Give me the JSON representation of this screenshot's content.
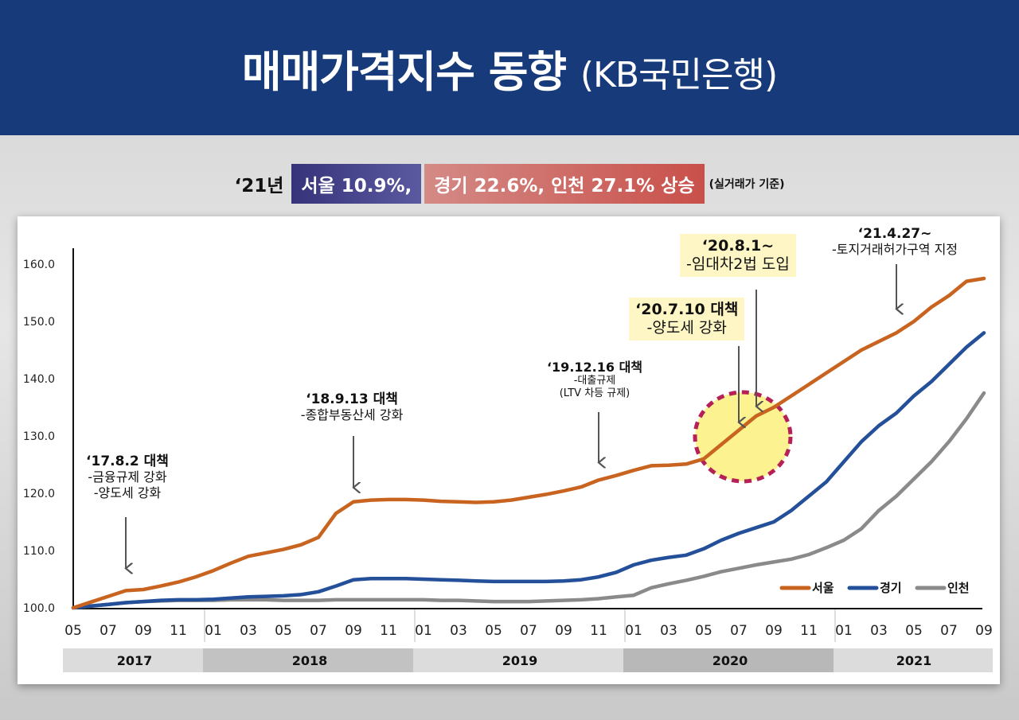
{
  "header": {
    "title": "매매가격지수 동향",
    "source": "(KB국민은행)"
  },
  "subtitle": {
    "year": "‘21년",
    "seoul": "서울 10.9%,",
    "others": "경기 22.6%, 인천 27.1% 상승",
    "note": "(실거래가 기준)"
  },
  "annotations": {
    "a1": {
      "title": "‘17.8.2 대책",
      "lines": [
        "-금융규제 강화",
        "-양도세 강화"
      ]
    },
    "a2": {
      "title": "‘18.9.13 대책",
      "lines": [
        "-종합부동산세 강화"
      ]
    },
    "a3": {
      "title": "‘19.12.16 대책",
      "lines": [
        "-대출규제",
        "(LTV 차등 규제)"
      ]
    },
    "a4": {
      "title": "‘20.7.10 대책",
      "lines": [
        "-양도세 강화"
      ]
    },
    "a5": {
      "title": "‘20.8.1~",
      "lines": [
        "-임대차2법 도입"
      ]
    },
    "a6": {
      "title": "‘21.4.27~",
      "lines": [
        "-토지거래허가구역 지정"
      ]
    }
  },
  "colors": {
    "seoul": "#c8641f",
    "gyeonggi": "#24509a",
    "incheon": "#8a8a8a",
    "highlight": "#fcf28a",
    "highlight_border": "#b0154f"
  },
  "chart_data": {
    "type": "line",
    "ylim": [
      100,
      160
    ],
    "yticks": [
      "100.0",
      "110.0",
      "120.0",
      "130.0",
      "140.0",
      "150.0",
      "160.0"
    ],
    "x_tick_labels": [
      "05",
      "07",
      "09",
      "11",
      "01",
      "03",
      "05",
      "07",
      "09",
      "11",
      "01",
      "03",
      "05",
      "07",
      "09",
      "11",
      "01",
      "03",
      "05",
      "07",
      "09",
      "11",
      "01",
      "03",
      "05",
      "07",
      "09"
    ],
    "year_groups": [
      {
        "label": "2017",
        "start": "2017-05",
        "end": "2017-12"
      },
      {
        "label": "2018",
        "start": "2018-01",
        "end": "2018-12"
      },
      {
        "label": "2019",
        "start": "2019-01",
        "end": "2019-12"
      },
      {
        "label": "2020",
        "start": "2020-01",
        "end": "2020-12"
      },
      {
        "label": "2021",
        "start": "2021-01",
        "end": "2021-09"
      }
    ],
    "x": [
      "2017-05",
      "2017-06",
      "2017-07",
      "2017-08",
      "2017-09",
      "2017-10",
      "2017-11",
      "2017-12",
      "2018-01",
      "2018-02",
      "2018-03",
      "2018-04",
      "2018-05",
      "2018-06",
      "2018-07",
      "2018-08",
      "2018-09",
      "2018-10",
      "2018-11",
      "2018-12",
      "2019-01",
      "2019-02",
      "2019-03",
      "2019-04",
      "2019-05",
      "2019-06",
      "2019-07",
      "2019-08",
      "2019-09",
      "2019-10",
      "2019-11",
      "2019-12",
      "2020-01",
      "2020-02",
      "2020-03",
      "2020-04",
      "2020-05",
      "2020-06",
      "2020-07",
      "2020-08",
      "2020-09",
      "2020-10",
      "2020-11",
      "2020-12",
      "2021-01",
      "2021-02",
      "2021-03",
      "2021-04",
      "2021-05",
      "2021-06",
      "2021-07",
      "2021-08",
      "2021-09"
    ],
    "series": [
      {
        "name": "서울",
        "values": [
          100.0,
          101.0,
          102.0,
          103.0,
          103.2,
          103.8,
          104.5,
          105.4,
          106.5,
          107.8,
          109.0,
          109.6,
          110.2,
          111.0,
          112.3,
          116.5,
          118.5,
          118.8,
          118.9,
          118.9,
          118.8,
          118.6,
          118.5,
          118.4,
          118.5,
          118.8,
          119.3,
          119.8,
          120.4,
          121.1,
          122.3,
          123.1,
          124.0,
          124.8,
          124.9,
          125.1,
          126.0,
          128.5,
          131.0,
          133.5,
          135.0,
          137.0,
          139.0,
          141.0,
          143.0,
          145.0,
          146.5,
          148.0,
          150.0,
          152.5,
          154.5,
          157.0,
          157.5
        ]
      },
      {
        "name": "경기",
        "values": [
          100.0,
          100.3,
          100.6,
          100.9,
          101.1,
          101.3,
          101.4,
          101.4,
          101.5,
          101.7,
          101.9,
          102.0,
          102.1,
          102.3,
          102.8,
          103.8,
          104.9,
          105.1,
          105.1,
          105.1,
          105.0,
          104.9,
          104.8,
          104.7,
          104.6,
          104.6,
          104.6,
          104.6,
          104.7,
          104.9,
          105.4,
          106.2,
          107.5,
          108.3,
          108.8,
          109.2,
          110.3,
          111.8,
          113.0,
          114.0,
          115.0,
          117.0,
          119.5,
          122.0,
          125.5,
          129.0,
          131.8,
          134.0,
          137.0,
          139.5,
          142.5,
          145.5,
          148.0
        ]
      },
      {
        "name": "인천",
        "values": [
          100.0,
          100.3,
          100.6,
          100.9,
          101.1,
          101.2,
          101.3,
          101.3,
          101.3,
          101.4,
          101.4,
          101.4,
          101.3,
          101.3,
          101.3,
          101.4,
          101.4,
          101.4,
          101.4,
          101.4,
          101.4,
          101.3,
          101.3,
          101.2,
          101.1,
          101.1,
          101.1,
          101.2,
          101.3,
          101.4,
          101.6,
          101.9,
          102.2,
          103.5,
          104.2,
          104.8,
          105.5,
          106.3,
          106.9,
          107.5,
          108.0,
          108.5,
          109.3,
          110.5,
          111.8,
          113.8,
          117.0,
          119.5,
          122.5,
          125.5,
          129.0,
          133.0,
          137.5
        ]
      }
    ],
    "legend": [
      "서울",
      "경기",
      "인천"
    ],
    "legend_position": "bottom-right",
    "arrow_targets": [
      "2017-08",
      "2018-09",
      "2019-11",
      "2020-07",
      "2020-08",
      "2021-04"
    ],
    "highlight_range": [
      "2020-06",
      "2020-10"
    ]
  }
}
